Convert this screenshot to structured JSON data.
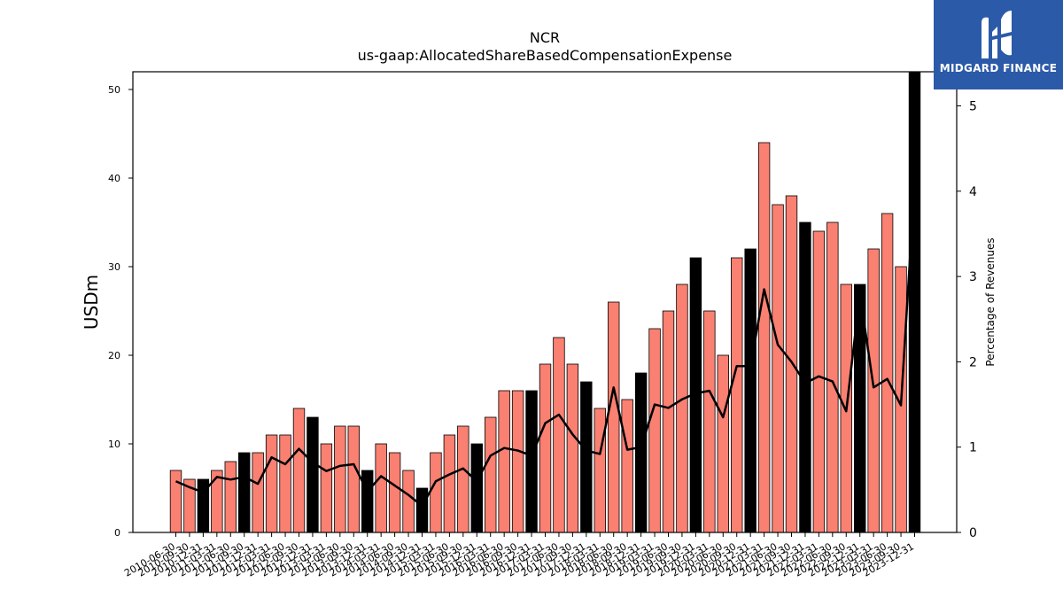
{
  "chart_data": {
    "type": "bar",
    "title": "NCR",
    "subtitle": "us-gaap:AllocatedShareBasedCompensationExpense",
    "ylabel": "USDm",
    "y2label": "Percentage of Revenues",
    "ylim": [
      0,
      52
    ],
    "y2lim": [
      0,
      5.4
    ],
    "yticks": [
      0,
      10,
      20,
      30,
      40,
      50
    ],
    "y2ticks": [
      0,
      1,
      2,
      3,
      4,
      5
    ],
    "categories": [
      "2010-06-30",
      "2010-09-30",
      "2010-12-31",
      "2011-03-31",
      "2011-06-30",
      "2011-09-30",
      "2011-12-31",
      "2012-03-31",
      "2012-06-30",
      "2012-09-30",
      "2012-12-31",
      "2013-03-31",
      "2013-06-30",
      "2013-09-30",
      "2013-12-31",
      "2014-03-31",
      "2014-06-30",
      "2014-09-30",
      "2014-12-31",
      "2015-03-31",
      "2015-06-30",
      "2015-09-30",
      "2015-12-31",
      "2016-03-31",
      "2016-06-30",
      "2016-09-30",
      "2016-12-31",
      "2017-03-31",
      "2017-06-30",
      "2017-09-30",
      "2017-12-31",
      "2018-03-31",
      "2018-06-30",
      "2018-09-30",
      "2018-12-31",
      "2019-03-31",
      "2019-06-30",
      "2019-09-30",
      "2019-12-31",
      "2020-03-31",
      "2020-06-30",
      "2020-09-30",
      "2020-12-31",
      "2021-03-31",
      "2021-06-30",
      "2021-09-30",
      "2021-12-31",
      "2022-03-31",
      "2022-06-30",
      "2022-09-30",
      "2022-12-31",
      "2023-03-31",
      "2023-06-30",
      "2023-09-30",
      "2023-12-31"
    ],
    "tick_labels": [
      "2010-06-30",
      "2010-09-30",
      "2010-12-31",
      "2011-03-31",
      "2011-06-30",
      "2011-09-30",
      "2011-12-31",
      "2012-03-31",
      "2012-06-30",
      "2012-09-30",
      "2012-12-31",
      "2013-03-31",
      "2013-06-30",
      "2013-09-30",
      "2013-12-31",
      "2014-03-31",
      "2014-06-30",
      "2014-09-30",
      "2014-12-31",
      "2015-03-31",
      "2015-06-30",
      "2015-09-30",
      "2015-12-31",
      "2016-03-31",
      "2016-06-30",
      "2016-09-30",
      "2016-12-31",
      "2017-03-31",
      "2017-06-30",
      "2017-09-30",
      "2017-12-31",
      "2018-03-31",
      "2018-06-30",
      "2018-09-30",
      "2018-12-31",
      "2019-03-31",
      "2019-06-30",
      "2019-09-30",
      "2019-12-31",
      "2020-03-31",
      "2020-06-30",
      "2020-09-30",
      "2020-12-31",
      "2021-03-31",
      "2021-06-30",
      "2021-09-30",
      "2021-12-31",
      "2022-03-31",
      "2022-06-30",
      "2022-09-30",
      "2022-12-31",
      "2023-03-31",
      "2023-06-30",
      "2023-09-30",
      "2023-12-31"
    ],
    "values": [
      7,
      6,
      6,
      7,
      8,
      9,
      9,
      11,
      11,
      14,
      13,
      10,
      12,
      12,
      7,
      10,
      9,
      7,
      5,
      9,
      11,
      12,
      10,
      13,
      16,
      16,
      16,
      19,
      22,
      19,
      17,
      14,
      26,
      15,
      18,
      23,
      25,
      28,
      31,
      25,
      20,
      31,
      32,
      44,
      37,
      38,
      35,
      34,
      35,
      28,
      28,
      32,
      36,
      30,
      52
    ],
    "highlight": [
      false,
      false,
      true,
      false,
      false,
      true,
      false,
      false,
      false,
      false,
      true,
      false,
      false,
      false,
      true,
      false,
      false,
      false,
      true,
      false,
      false,
      false,
      true,
      false,
      false,
      false,
      true,
      false,
      false,
      false,
      true,
      false,
      false,
      false,
      true,
      false,
      false,
      false,
      true,
      false,
      false,
      false,
      true,
      false,
      false,
      false,
      true,
      false,
      false,
      false,
      true,
      false,
      false,
      false,
      true
    ],
    "pct_revenues": [
      0.6,
      0.53,
      0.47,
      0.65,
      0.62,
      0.65,
      0.57,
      0.88,
      0.8,
      0.98,
      0.82,
      0.72,
      0.78,
      0.8,
      0.48,
      0.66,
      0.55,
      0.44,
      0.31,
      0.6,
      0.68,
      0.75,
      0.6,
      0.9,
      0.99,
      0.96,
      0.9,
      1.28,
      1.38,
      1.15,
      0.96,
      0.92,
      1.7,
      0.97,
      1.0,
      1.5,
      1.46,
      1.56,
      1.63,
      1.66,
      1.35,
      1.95,
      1.95,
      2.85,
      2.2,
      2.0,
      1.75,
      1.83,
      1.77,
      1.42,
      2.8,
      1.7,
      1.8,
      1.49,
      4.1
    ],
    "colors": {
      "bar": "#fa8072",
      "bar_highlight": "#000000",
      "line": "#000000",
      "edge": "#000000"
    },
    "grid": false
  },
  "logo": {
    "text": "MIDGARD FINANCE",
    "icon": "midgard-logo-icon",
    "bg": "#2b5aa8"
  }
}
